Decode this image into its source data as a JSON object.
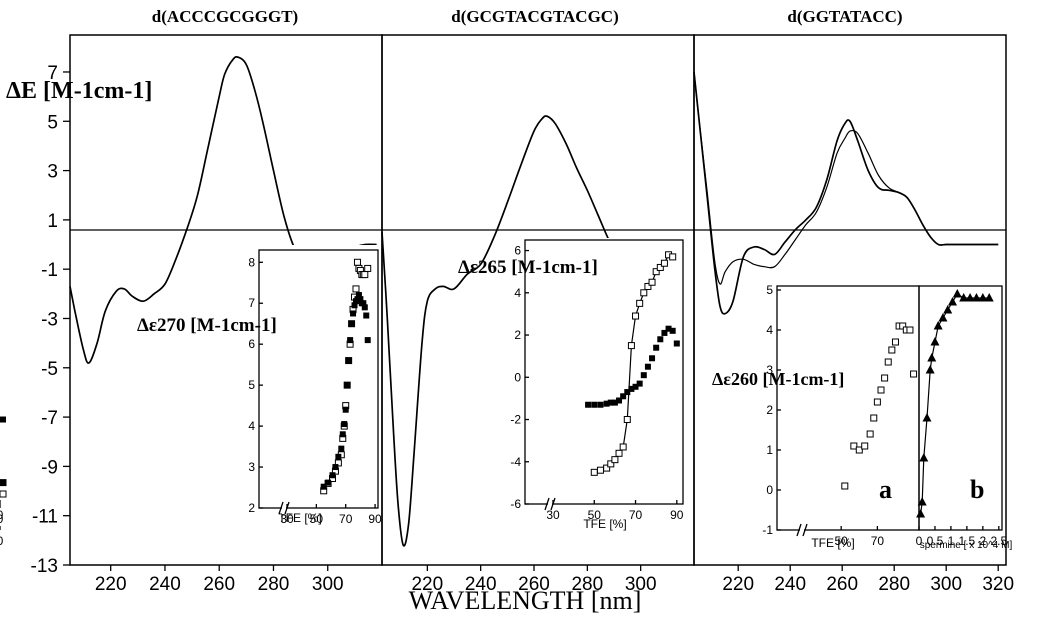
{
  "figure": {
    "y_axis_label": "ΔE [M-1cm-1]",
    "x_axis_label": "WAVELENGTH [nm]"
  },
  "chart_data": [
    {
      "type": "line",
      "title": "d(ACCCGCGGGT)",
      "xlim": [
        205,
        320
      ],
      "ylim": [
        -13,
        8.5
      ],
      "yticks": [
        7,
        5,
        3,
        1,
        -1,
        -3,
        -5,
        -7,
        -9,
        -11,
        -13
      ],
      "xticks": [
        220,
        240,
        260,
        280,
        300
      ],
      "series": [
        {
          "x": [
            205,
            207,
            210,
            212,
            215,
            218,
            222,
            225,
            228,
            232,
            236,
            240,
            244,
            248,
            252,
            256,
            260,
            262,
            265,
            267,
            270,
            273,
            276,
            280,
            284,
            288,
            292,
            295,
            298,
            302,
            306,
            310,
            314,
            318
          ],
          "y": [
            -1.7,
            -2.8,
            -4.3,
            -4.8,
            -4.0,
            -2.7,
            -1.9,
            -1.8,
            -2.1,
            -2.3,
            -2.0,
            -1.6,
            -0.6,
            0.6,
            2.0,
            4.0,
            6.0,
            6.9,
            7.5,
            7.6,
            7.3,
            6.3,
            5.0,
            3.0,
            1.1,
            -0.2,
            -0.6,
            -0.8,
            -0.8,
            -0.6,
            -0.3,
            -0.1,
            0.0,
            0.0
          ]
        }
      ]
    },
    {
      "type": "scatter",
      "inset": true,
      "xlabel": "TFE [%]",
      "ylabel": "Δε270 [M-1cm-1]",
      "xlim": [
        0,
        92
      ],
      "ylim": [
        2,
        8.3
      ],
      "xticks": [
        0,
        30,
        50,
        70,
        90
      ],
      "yticks": [
        2,
        3,
        4,
        5,
        6,
        7,
        8
      ],
      "series": [
        {
          "marker": "open-square",
          "x": [
            0,
            55,
            58,
            61,
            63,
            65,
            67,
            68,
            69,
            70,
            71,
            72,
            73,
            74,
            75,
            76,
            77,
            78,
            79,
            80,
            81,
            82,
            83,
            85
          ],
          "y": [
            2.62,
            2.42,
            2.6,
            2.72,
            2.9,
            3.1,
            3.3,
            3.7,
            4.0,
            4.5,
            5.0,
            5.6,
            6.0,
            6.5,
            6.85,
            7.15,
            7.35,
            8.0,
            7.85,
            7.8,
            7.7,
            7.7,
            7.7,
            7.85
          ]
        },
        {
          "marker": "filled-square",
          "x": [
            0,
            55,
            58,
            61,
            63,
            65,
            67,
            68,
            69,
            70,
            71,
            72,
            73,
            74,
            75,
            76,
            77,
            78,
            79,
            80,
            81,
            82,
            83,
            84,
            85
          ],
          "y": [
            2.62,
            2.52,
            2.62,
            2.8,
            3.0,
            3.25,
            3.45,
            3.8,
            4.05,
            4.4,
            5.0,
            5.6,
            6.1,
            6.5,
            6.75,
            6.95,
            7.05,
            7.1,
            7.2,
            7.1,
            7.0,
            7.0,
            6.9,
            6.7,
            6.1
          ]
        }
      ]
    },
    {
      "type": "line",
      "title": "d(GCGTACGTACGC)",
      "xlim": [
        203,
        320
      ],
      "ylim": [
        -13,
        8.5
      ],
      "xticks": [
        220,
        240,
        260,
        280,
        300
      ],
      "series": [
        {
          "x": [
            203,
            205,
            207,
            209,
            211,
            213,
            215,
            218,
            220,
            223,
            226,
            230,
            235,
            240,
            245,
            250,
            255,
            260,
            263,
            265,
            268,
            272,
            276,
            280,
            284,
            288,
            292,
            296,
            300,
            304,
            308,
            312,
            316
          ],
          "y": [
            0.5,
            -3.0,
            -7.0,
            -10.5,
            -12.2,
            -11.3,
            -8.5,
            -4.0,
            -2.3,
            -1.8,
            -1.7,
            -1.8,
            -1.2,
            -0.8,
            0.3,
            1.7,
            3.2,
            4.6,
            5.1,
            5.2,
            4.9,
            4.1,
            3.1,
            2.2,
            1.2,
            0.2,
            -0.6,
            -1.3,
            -1.2,
            -0.7,
            -0.2,
            0.0,
            0.0
          ]
        }
      ]
    },
    {
      "type": "scatter",
      "inset": true,
      "xlabel": "TFE [%]",
      "ylabel": "Δε265 [M-1cm-1]",
      "xlim": [
        0,
        93
      ],
      "ylim": [
        -6,
        6.5
      ],
      "xticks": [
        0,
        30,
        50,
        70,
        90
      ],
      "yticks": [
        -6,
        -4,
        -2,
        0,
        2,
        4,
        6
      ],
      "series": [
        {
          "marker": "open-square",
          "x": [
            50,
            53,
            56,
            58,
            60,
            62,
            64,
            66,
            68,
            70,
            72,
            74,
            76,
            78,
            80,
            82,
            84,
            86,
            88
          ],
          "y": [
            -4.5,
            -4.4,
            -4.3,
            -4.1,
            -3.9,
            -3.6,
            -3.3,
            -2.0,
            1.5,
            2.9,
            3.5,
            4.0,
            4.3,
            4.5,
            5.0,
            5.2,
            5.4,
            5.8,
            5.7
          ]
        },
        {
          "marker": "filled-square",
          "x": [
            0,
            47,
            50,
            53,
            56,
            58,
            60,
            62,
            64,
            66,
            68,
            70,
            72,
            74,
            76,
            78,
            80,
            82,
            84,
            86,
            88,
            90
          ],
          "y": [
            -2.0,
            -1.3,
            -1.3,
            -1.3,
            -1.25,
            -1.2,
            -1.2,
            -1.1,
            -0.9,
            -0.7,
            -0.55,
            -0.45,
            -0.3,
            0.1,
            0.5,
            0.9,
            1.4,
            1.8,
            2.1,
            2.3,
            2.2,
            1.6
          ]
        }
      ]
    },
    {
      "type": "line",
      "title": "d(GGTATACC)",
      "xlim": [
        203,
        323
      ],
      "ylim": [
        -13,
        8.5
      ],
      "xticks": [
        220,
        240,
        260,
        280,
        300,
        320
      ],
      "series": [
        {
          "x": [
            203,
            205,
            208,
            211,
            213,
            215,
            218,
            222,
            226,
            230,
            234,
            238,
            242,
            246,
            250,
            254,
            258,
            261,
            263,
            266,
            270,
            274,
            278,
            282,
            285,
            288,
            291,
            294,
            297,
            300,
            305,
            310,
            315,
            320
          ],
          "y": [
            7.0,
            5.0,
            2.0,
            -1.0,
            -2.5,
            -2.8,
            -2.3,
            -0.5,
            -0.1,
            -0.2,
            -0.4,
            0.1,
            0.6,
            1.0,
            1.5,
            2.6,
            4.2,
            4.9,
            5.0,
            4.2,
            3.0,
            2.3,
            2.2,
            2.1,
            1.9,
            1.4,
            0.8,
            0.3,
            0.0,
            0.0,
            0.0,
            0.0,
            0.0,
            0.0
          ]
        },
        {
          "x": [
            203,
            205,
            208,
            211,
            213,
            215,
            218,
            222,
            226,
            230,
            234,
            238,
            242,
            246,
            250,
            254,
            258,
            261,
            263,
            266,
            270,
            274,
            278,
            282,
            285,
            288,
            291,
            294,
            297,
            300,
            305,
            310,
            315,
            320
          ],
          "y": [
            7.0,
            5.0,
            2.2,
            -0.7,
            -1.6,
            -1.1,
            -0.7,
            -0.6,
            -0.8,
            -0.9,
            -0.9,
            -0.4,
            0.2,
            0.8,
            1.3,
            2.3,
            3.7,
            4.3,
            4.6,
            4.5,
            3.7,
            2.8,
            2.3,
            2.1,
            1.9,
            1.4,
            0.8,
            0.3,
            0.0,
            0.0,
            0.0,
            0.0,
            0.0,
            0.0
          ]
        }
      ]
    },
    {
      "type": "scatter",
      "inset": true,
      "panel_label": "a",
      "xlabel": "TFE [%]",
      "ylabel": "Δε260 [M-1cm-1]",
      "xlim": [
        0,
        93
      ],
      "ylim": [
        -1,
        5.1
      ],
      "xticks": [
        0,
        50,
        70
      ],
      "yticks": [
        -1,
        0,
        1,
        2,
        3,
        4,
        5
      ],
      "series": [
        {
          "marker": "open-square",
          "x": [
            0,
            52,
            57,
            60,
            63,
            66,
            68,
            70,
            72,
            74,
            76,
            78,
            80,
            82,
            84,
            86,
            88,
            90
          ],
          "y": [
            -0.1,
            0.1,
            1.1,
            1.0,
            1.1,
            1.4,
            1.8,
            2.2,
            2.5,
            2.8,
            3.2,
            3.5,
            3.7,
            4.1,
            4.1,
            4.0,
            4.0,
            2.9
          ]
        }
      ]
    },
    {
      "type": "scatter",
      "inset": true,
      "panel_label": "b",
      "xlabel": "spermine [ x 10^4 M]",
      "xlim": [
        0,
        2.6
      ],
      "ylim": [
        -1,
        5.1
      ],
      "xticks": [
        0,
        0.5,
        1,
        1.5,
        2,
        2.5
      ],
      "tick_labels": [
        "0",
        "0.5",
        "1",
        "1.5",
        "2",
        "2.5"
      ],
      "series": [
        {
          "marker": "filled-triangle",
          "x": [
            0.05,
            0.1,
            0.15,
            0.25,
            0.35,
            0.4,
            0.5,
            0.6,
            0.75,
            0.9,
            1.05,
            1.2,
            1.4,
            1.6,
            1.8,
            2.0,
            2.2
          ],
          "y": [
            -0.6,
            -0.3,
            0.8,
            1.8,
            3.0,
            3.3,
            3.7,
            4.1,
            4.3,
            4.5,
            4.7,
            4.9,
            4.8,
            4.8,
            4.8,
            4.8,
            4.8
          ]
        }
      ]
    }
  ]
}
